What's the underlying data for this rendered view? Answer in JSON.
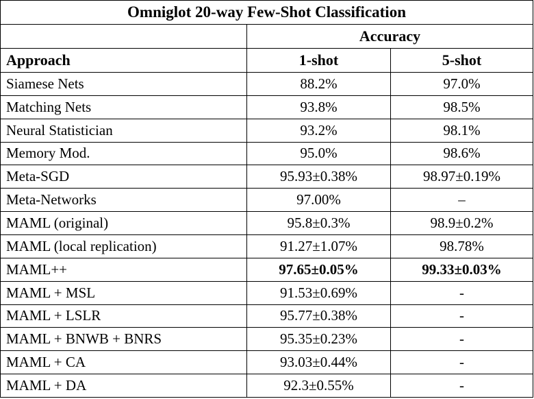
{
  "table": {
    "title": "Omniglot 20-way Few-Shot Classification",
    "accuracy_header": "Accuracy",
    "columns": {
      "approach": "Approach",
      "one_shot": "1-shot",
      "five_shot": "5-shot"
    },
    "rows": [
      {
        "approach": "Siamese Nets",
        "one_shot": "88.2%",
        "five_shot": "97.0%",
        "highlight": false
      },
      {
        "approach": "Matching Nets",
        "one_shot": "93.8%",
        "five_shot": "98.5%",
        "highlight": false
      },
      {
        "approach": "Neural Statistician",
        "one_shot": "93.2%",
        "five_shot": "98.1%",
        "highlight": false
      },
      {
        "approach": "Memory Mod.",
        "one_shot": "95.0%",
        "five_shot": "98.6%",
        "highlight": false
      },
      {
        "approach": "Meta-SGD",
        "one_shot": "95.93±0.38%",
        "five_shot": "98.97±0.19%",
        "highlight": false
      },
      {
        "approach": "Meta-Networks",
        "one_shot": "97.00%",
        "five_shot": "–",
        "highlight": false
      },
      {
        "approach": "MAML (original)",
        "one_shot": "95.8±0.3%",
        "five_shot": "98.9±0.2%",
        "highlight": false
      },
      {
        "approach": "MAML (local replication)",
        "one_shot": "91.27±1.07%",
        "five_shot": "98.78%",
        "highlight": false
      },
      {
        "approach": "MAML++",
        "one_shot": "97.65±0.05%",
        "five_shot": "99.33±0.03%",
        "highlight": true
      },
      {
        "approach": "MAML + MSL",
        "one_shot": "91.53±0.69%",
        "five_shot": "-",
        "highlight": false
      },
      {
        "approach": "MAML + LSLR",
        "one_shot": "95.77±0.38%",
        "five_shot": "-",
        "highlight": false
      },
      {
        "approach": "MAML + BNWB + BNRS",
        "one_shot": "95.35±0.23%",
        "five_shot": "-",
        "highlight": false
      },
      {
        "approach": "MAML + CA",
        "one_shot": "93.03±0.44%",
        "five_shot": "-",
        "highlight": false
      },
      {
        "approach": "MAML + DA",
        "one_shot": "92.3±0.55%",
        "five_shot": "-",
        "highlight": false
      }
    ]
  }
}
